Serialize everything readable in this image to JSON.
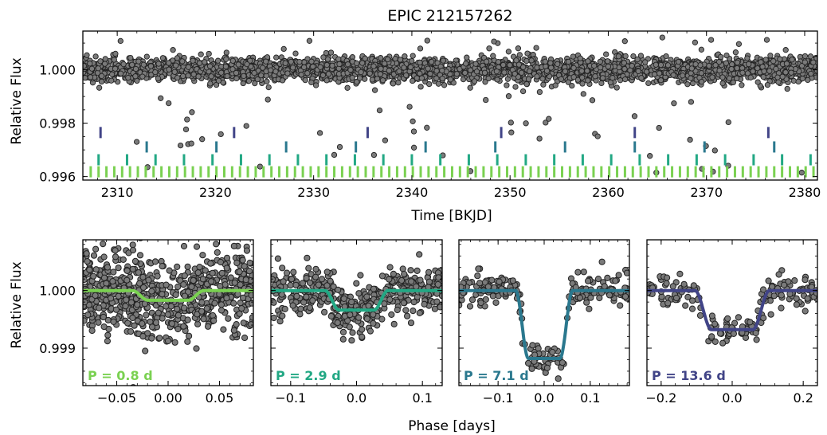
{
  "title": "EPIC 212157262",
  "colors": {
    "points": "#7a7a7a",
    "p08": "#7ad151",
    "p29": "#22a884",
    "p71": "#2a788e",
    "p136": "#414487"
  },
  "chart_data": [
    {
      "panel": "top",
      "type": "scatter",
      "title": "EPIC 212157262",
      "xlabel": "Time [BKJD]",
      "ylabel": "Relative Flux",
      "xlim": [
        2306.5,
        2381.3
      ],
      "ylim": [
        0.99587,
        1.00145
      ],
      "xticks": [
        2310,
        2320,
        2330,
        2340,
        2350,
        2360,
        2370,
        2380
      ],
      "xtick_labels": [
        "2310",
        "2320",
        "2330",
        "2340",
        "2350",
        "2360",
        "2370",
        "2380"
      ],
      "yticks": [
        0.996,
        0.998,
        1.0
      ],
      "ytick_labels": [
        "0.996",
        "0.998",
        "1.000"
      ],
      "light_curve": {
        "baseline": 1.0,
        "scatter": 0.00025,
        "outliers_down_to": 0.9961,
        "outliers_up_to": 1.0013
      },
      "transit_markers": [
        {
          "period_days": 0.8,
          "first_epoch": 2307.3,
          "row_flux": 0.99618,
          "color": "#7ad151"
        },
        {
          "period_days": 2.9,
          "first_epoch": 2308.1,
          "row_flux": 0.99663,
          "color": "#22a884"
        },
        {
          "period_days": 7.1,
          "first_epoch": 2313.0,
          "row_flux": 0.99711,
          "color": "#2a788e"
        },
        {
          "period_days": 13.6,
          "first_epoch": 2308.3,
          "row_flux": 0.99765,
          "color": "#414487"
        }
      ],
      "grid": false
    },
    {
      "panel": "bottom-1",
      "type": "scatter",
      "ylabel": "Relative Flux",
      "annotation": "P = 0.8 d",
      "period_days": 0.8,
      "color": "#7ad151",
      "depth": 0.00017,
      "half_width_days": 0.035,
      "xlim": [
        -0.083,
        0.083
      ],
      "ylim": [
        0.99835,
        1.00088
      ],
      "xticks": [
        -0.05,
        0.0,
        0.05
      ],
      "xtick_labels": [
        "−0.05",
        "0.00",
        "0.05"
      ],
      "yticks": [
        0.999,
        1.0
      ],
      "ytick_labels": [
        "0.999",
        "1.000"
      ]
    },
    {
      "panel": "bottom-2",
      "type": "scatter",
      "annotation": "P = 2.9 d",
      "period_days": 2.9,
      "color": "#22a884",
      "depth": 0.00034,
      "half_width_days": 0.048,
      "xlim": [
        -0.13,
        0.13
      ],
      "ylim": [
        0.99835,
        1.00088
      ],
      "xticks": [
        -0.1,
        0.0,
        0.1
      ],
      "xtick_labels": [
        "−0.1",
        "0.0",
        "0.1"
      ]
    },
    {
      "panel": "bottom-3",
      "type": "scatter",
      "annotation": "P = 7.1 d",
      "period_days": 7.1,
      "color": "#2a788e",
      "depth": 0.00118,
      "half_width_days": 0.062,
      "xlim": [
        -0.185,
        0.185
      ],
      "ylim": [
        0.99835,
        1.00088
      ],
      "xticks": [
        -0.1,
        0.0,
        0.1
      ],
      "xtick_labels": [
        "−0.1",
        "0.0",
        "0.1"
      ]
    },
    {
      "panel": "bottom-4",
      "type": "scatter",
      "annotation": "P = 13.6 d",
      "period_days": 13.6,
      "color": "#414487",
      "depth": 0.00068,
      "half_width_days": 0.105,
      "xlim": [
        -0.24,
        0.24
      ],
      "ylim": [
        0.99835,
        1.00088
      ],
      "xticks": [
        -0.2,
        0.0,
        0.2
      ],
      "xtick_labels": [
        "−0.2",
        "0.0",
        "0.2"
      ]
    }
  ],
  "shared_xlabel": "Phase [days]"
}
